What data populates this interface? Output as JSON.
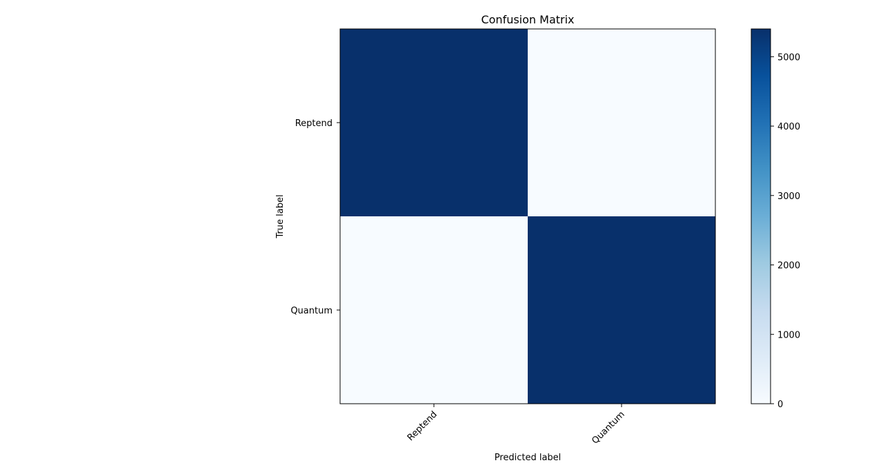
{
  "chart_data": {
    "type": "heatmap",
    "title": "Confusion Matrix",
    "xlabel": "Predicted label",
    "ylabel": "True label",
    "row_labels": [
      "Reptend",
      "Quantum"
    ],
    "col_labels": [
      "Reptend",
      "Quantum"
    ],
    "values": [
      [
        5400,
        0
      ],
      [
        0,
        5400
      ]
    ],
    "colormap": "Blues",
    "colormap_stops": [
      "#f7fbff",
      "#deebf7",
      "#c6dbef",
      "#9ecae1",
      "#6baed6",
      "#4292c6",
      "#2171b5",
      "#08519c",
      "#08306b"
    ],
    "color_range": [
      0,
      5400
    ],
    "colorbar_ticks": [
      "0",
      "1000",
      "2000",
      "3000",
      "4000",
      "5000"
    ],
    "x_tick_rotation": 45,
    "grid": false
  }
}
